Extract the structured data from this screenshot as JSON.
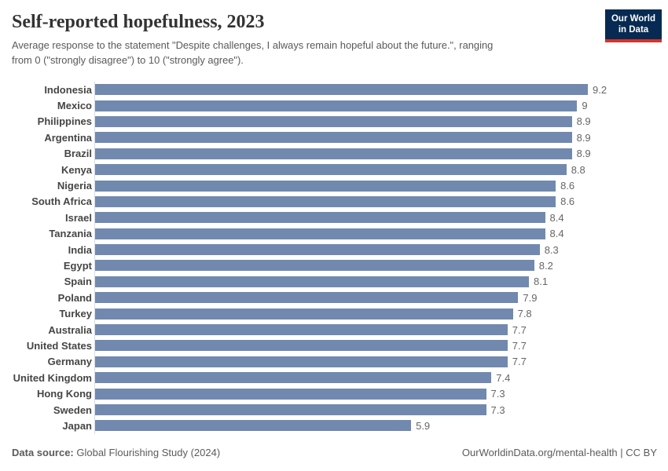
{
  "header": {
    "title": "Self-reported hopefulness, 2023",
    "subtitle": [
      "Average response to the statement \"Despite challenges, I always remain hopeful about the future.\", ranging",
      "from 0 (\"strongly disagree\") to 10 (\"strongly agree\")."
    ],
    "logo": {
      "line1": "Our World",
      "line2": "in Data"
    }
  },
  "chart_data": {
    "type": "bar",
    "orientation": "horizontal",
    "title": "Self-reported hopefulness, 2023",
    "categories": [
      "Indonesia",
      "Mexico",
      "Philippines",
      "Argentina",
      "Brazil",
      "Kenya",
      "Nigeria",
      "South Africa",
      "Israel",
      "Tanzania",
      "India",
      "Egypt",
      "Spain",
      "Poland",
      "Turkey",
      "Australia",
      "United States",
      "Germany",
      "United Kingdom",
      "Hong Kong",
      "Sweden",
      "Japan"
    ],
    "values": [
      9.2,
      9,
      8.9,
      8.9,
      8.9,
      8.8,
      8.6,
      8.6,
      8.4,
      8.4,
      8.3,
      8.2,
      8.1,
      7.9,
      7.8,
      7.7,
      7.7,
      7.7,
      7.4,
      7.3,
      7.3,
      5.9
    ],
    "value_labels": [
      "9.2",
      "9",
      "8.9",
      "8.9",
      "8.9",
      "8.8",
      "8.6",
      "8.6",
      "8.4",
      "8.4",
      "8.3",
      "8.2",
      "8.1",
      "7.9",
      "7.8",
      "7.7",
      "7.7",
      "7.7",
      "7.4",
      "7.3",
      "7.3",
      "5.9"
    ],
    "xlim": [
      0,
      9.2
    ],
    "xlabel": "",
    "ylabel": "",
    "grid": false,
    "legend": false,
    "value_label_position": "end",
    "bar_color": "#7189ae"
  },
  "footer": {
    "source_label": "Data source:",
    "source_value": " Global Flourishing Study (2024)",
    "right_text": "OurWorldinData.org/mental-health | CC BY"
  },
  "colors": {
    "bar": "#7189ae",
    "axis_line": "#dcdcdc",
    "title_text": "#333333",
    "subtitle_text": "#595959",
    "label_text": "#454545",
    "value_text": "#666666",
    "logo_navy": "#062a52",
    "logo_red": "#d4342c"
  }
}
